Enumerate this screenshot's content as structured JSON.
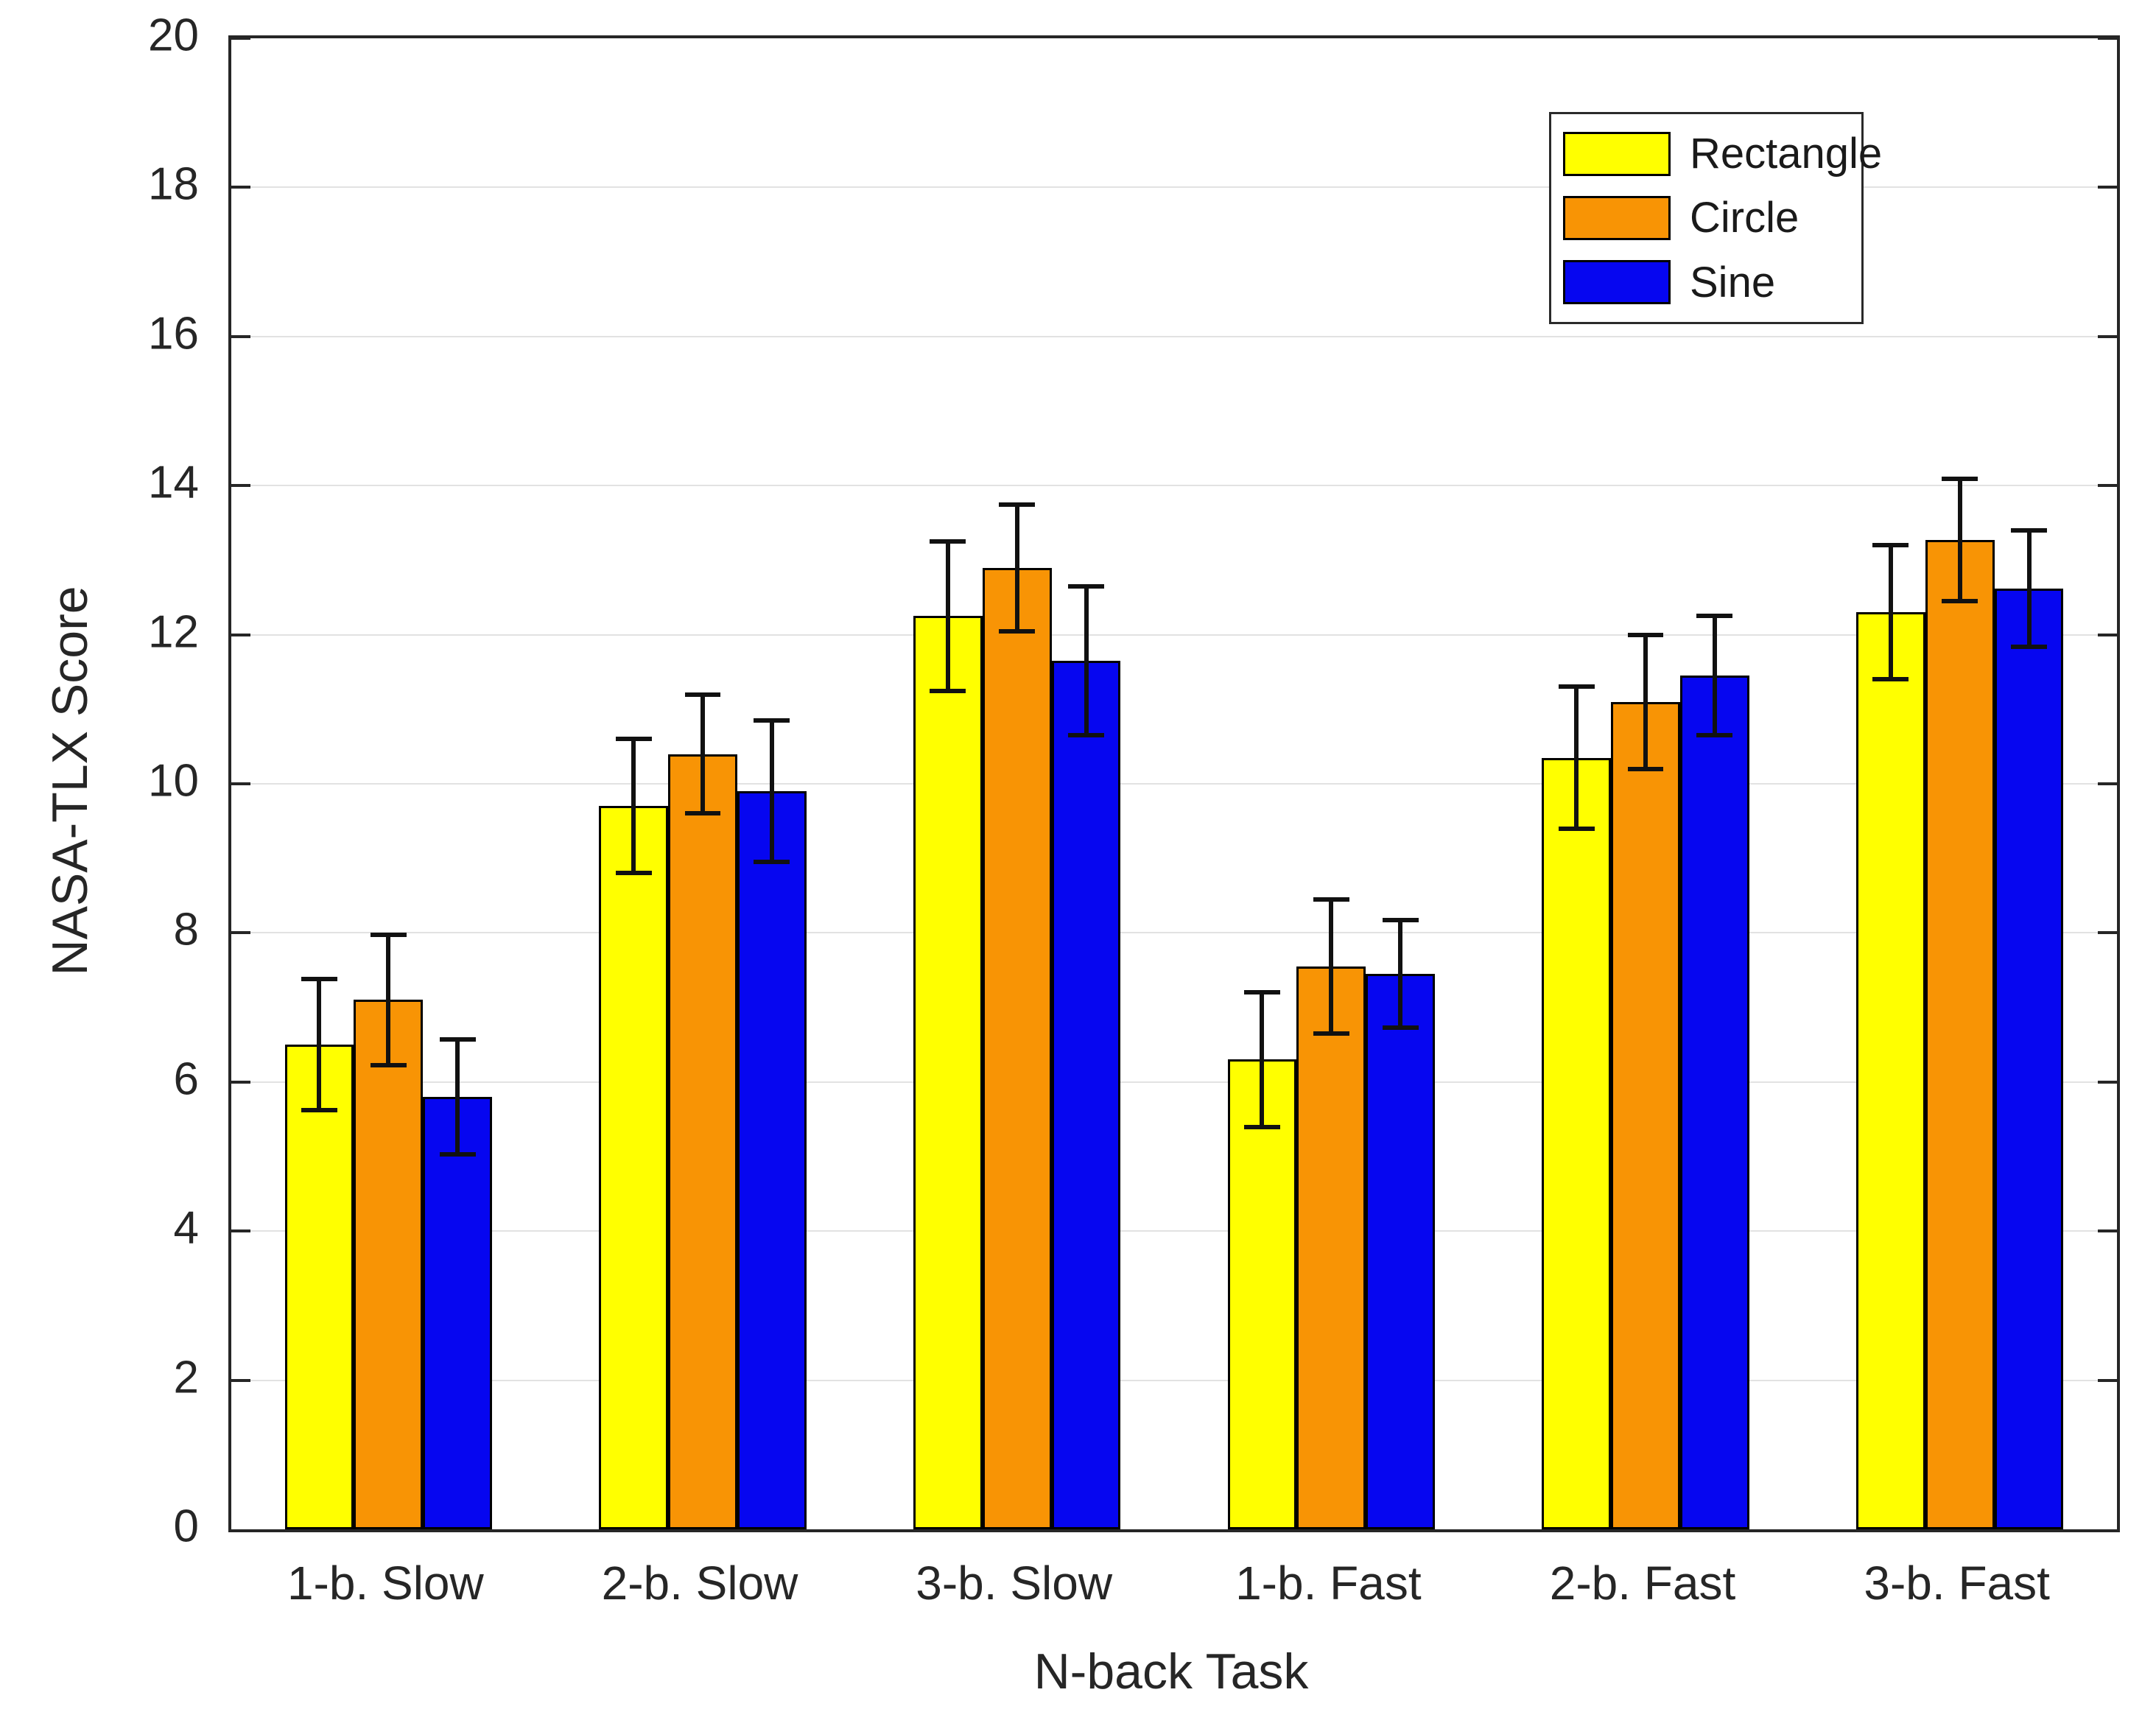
{
  "axes": {
    "y_min": 0,
    "y_max": 20,
    "y_tick_step": 2,
    "y_tick_labels": [
      "0",
      "2",
      "4",
      "6",
      "8",
      "10",
      "12",
      "14",
      "16",
      "18",
      "20"
    ],
    "axis_color": "#262626",
    "grid_color": "#e2e2e2",
    "background": "#ffffff"
  },
  "legend": {
    "position": "top-right",
    "entries": [
      "Rectangle",
      "Circle",
      "Sine"
    ]
  },
  "chart_data": {
    "type": "bar",
    "title": "",
    "xlabel": "N-back Task",
    "ylabel": "NASA-TLX Score",
    "ylim": [
      0,
      20
    ],
    "grid": "horizontal",
    "legend_position": "top-right",
    "categories": [
      "1-b. Slow",
      "2-b. Slow",
      "3-b. Slow",
      "1-b. Fast",
      "2-b. Fast",
      "3-b. Fast"
    ],
    "series": [
      {
        "name": "Rectangle",
        "color": "#ffff00",
        "values": [
          6.5,
          9.7,
          12.25,
          6.3,
          10.35,
          12.3
        ],
        "errors": [
          0.88,
          0.9,
          1.0,
          0.9,
          0.95,
          0.9
        ]
      },
      {
        "name": "Circle",
        "color": "#f89405",
        "values": [
          7.1,
          10.4,
          12.9,
          7.55,
          11.1,
          13.27
        ],
        "errors": [
          0.87,
          0.8,
          0.85,
          0.9,
          0.9,
          0.82
        ]
      },
      {
        "name": "Sine",
        "color": "#0606f0",
        "values": [
          5.8,
          9.9,
          11.65,
          7.45,
          11.45,
          12.62
        ],
        "errors": [
          0.77,
          0.95,
          1.0,
          0.72,
          0.8,
          0.78
        ]
      }
    ]
  }
}
